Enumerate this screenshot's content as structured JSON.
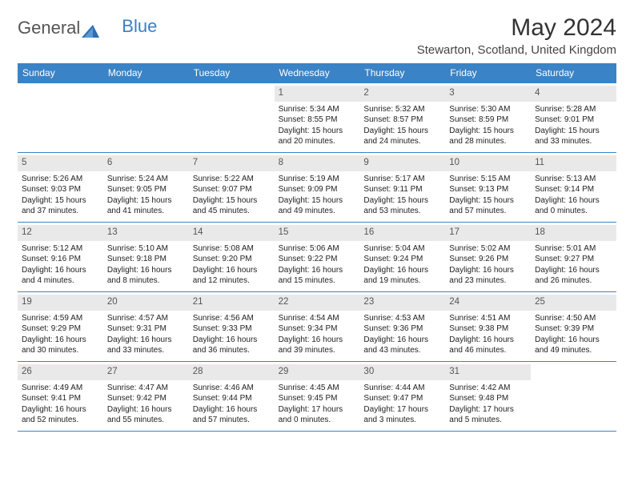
{
  "logo": {
    "textA": "General",
    "textB": "Blue"
  },
  "title": "May 2024",
  "location": "Stewarton, Scotland, United Kingdom",
  "colors": {
    "headerBar": "#3a83c6",
    "dayNumBg": "#e9e9e9",
    "weekBorder": "#3a83c6"
  },
  "weekdays": [
    "Sunday",
    "Monday",
    "Tuesday",
    "Wednesday",
    "Thursday",
    "Friday",
    "Saturday"
  ],
  "weeks": [
    [
      null,
      null,
      null,
      {
        "n": "1",
        "sr": "Sunrise: 5:34 AM",
        "ss": "Sunset: 8:55 PM",
        "d1": "Daylight: 15 hours",
        "d2": "and 20 minutes."
      },
      {
        "n": "2",
        "sr": "Sunrise: 5:32 AM",
        "ss": "Sunset: 8:57 PM",
        "d1": "Daylight: 15 hours",
        "d2": "and 24 minutes."
      },
      {
        "n": "3",
        "sr": "Sunrise: 5:30 AM",
        "ss": "Sunset: 8:59 PM",
        "d1": "Daylight: 15 hours",
        "d2": "and 28 minutes."
      },
      {
        "n": "4",
        "sr": "Sunrise: 5:28 AM",
        "ss": "Sunset: 9:01 PM",
        "d1": "Daylight: 15 hours",
        "d2": "and 33 minutes."
      }
    ],
    [
      {
        "n": "5",
        "sr": "Sunrise: 5:26 AM",
        "ss": "Sunset: 9:03 PM",
        "d1": "Daylight: 15 hours",
        "d2": "and 37 minutes."
      },
      {
        "n": "6",
        "sr": "Sunrise: 5:24 AM",
        "ss": "Sunset: 9:05 PM",
        "d1": "Daylight: 15 hours",
        "d2": "and 41 minutes."
      },
      {
        "n": "7",
        "sr": "Sunrise: 5:22 AM",
        "ss": "Sunset: 9:07 PM",
        "d1": "Daylight: 15 hours",
        "d2": "and 45 minutes."
      },
      {
        "n": "8",
        "sr": "Sunrise: 5:19 AM",
        "ss": "Sunset: 9:09 PM",
        "d1": "Daylight: 15 hours",
        "d2": "and 49 minutes."
      },
      {
        "n": "9",
        "sr": "Sunrise: 5:17 AM",
        "ss": "Sunset: 9:11 PM",
        "d1": "Daylight: 15 hours",
        "d2": "and 53 minutes."
      },
      {
        "n": "10",
        "sr": "Sunrise: 5:15 AM",
        "ss": "Sunset: 9:13 PM",
        "d1": "Daylight: 15 hours",
        "d2": "and 57 minutes."
      },
      {
        "n": "11",
        "sr": "Sunrise: 5:13 AM",
        "ss": "Sunset: 9:14 PM",
        "d1": "Daylight: 16 hours",
        "d2": "and 0 minutes."
      }
    ],
    [
      {
        "n": "12",
        "sr": "Sunrise: 5:12 AM",
        "ss": "Sunset: 9:16 PM",
        "d1": "Daylight: 16 hours",
        "d2": "and 4 minutes."
      },
      {
        "n": "13",
        "sr": "Sunrise: 5:10 AM",
        "ss": "Sunset: 9:18 PM",
        "d1": "Daylight: 16 hours",
        "d2": "and 8 minutes."
      },
      {
        "n": "14",
        "sr": "Sunrise: 5:08 AM",
        "ss": "Sunset: 9:20 PM",
        "d1": "Daylight: 16 hours",
        "d2": "and 12 minutes."
      },
      {
        "n": "15",
        "sr": "Sunrise: 5:06 AM",
        "ss": "Sunset: 9:22 PM",
        "d1": "Daylight: 16 hours",
        "d2": "and 15 minutes."
      },
      {
        "n": "16",
        "sr": "Sunrise: 5:04 AM",
        "ss": "Sunset: 9:24 PM",
        "d1": "Daylight: 16 hours",
        "d2": "and 19 minutes."
      },
      {
        "n": "17",
        "sr": "Sunrise: 5:02 AM",
        "ss": "Sunset: 9:26 PM",
        "d1": "Daylight: 16 hours",
        "d2": "and 23 minutes."
      },
      {
        "n": "18",
        "sr": "Sunrise: 5:01 AM",
        "ss": "Sunset: 9:27 PM",
        "d1": "Daylight: 16 hours",
        "d2": "and 26 minutes."
      }
    ],
    [
      {
        "n": "19",
        "sr": "Sunrise: 4:59 AM",
        "ss": "Sunset: 9:29 PM",
        "d1": "Daylight: 16 hours",
        "d2": "and 30 minutes."
      },
      {
        "n": "20",
        "sr": "Sunrise: 4:57 AM",
        "ss": "Sunset: 9:31 PM",
        "d1": "Daylight: 16 hours",
        "d2": "and 33 minutes."
      },
      {
        "n": "21",
        "sr": "Sunrise: 4:56 AM",
        "ss": "Sunset: 9:33 PM",
        "d1": "Daylight: 16 hours",
        "d2": "and 36 minutes."
      },
      {
        "n": "22",
        "sr": "Sunrise: 4:54 AM",
        "ss": "Sunset: 9:34 PM",
        "d1": "Daylight: 16 hours",
        "d2": "and 39 minutes."
      },
      {
        "n": "23",
        "sr": "Sunrise: 4:53 AM",
        "ss": "Sunset: 9:36 PM",
        "d1": "Daylight: 16 hours",
        "d2": "and 43 minutes."
      },
      {
        "n": "24",
        "sr": "Sunrise: 4:51 AM",
        "ss": "Sunset: 9:38 PM",
        "d1": "Daylight: 16 hours",
        "d2": "and 46 minutes."
      },
      {
        "n": "25",
        "sr": "Sunrise: 4:50 AM",
        "ss": "Sunset: 9:39 PM",
        "d1": "Daylight: 16 hours",
        "d2": "and 49 minutes."
      }
    ],
    [
      {
        "n": "26",
        "sr": "Sunrise: 4:49 AM",
        "ss": "Sunset: 9:41 PM",
        "d1": "Daylight: 16 hours",
        "d2": "and 52 minutes."
      },
      {
        "n": "27",
        "sr": "Sunrise: 4:47 AM",
        "ss": "Sunset: 9:42 PM",
        "d1": "Daylight: 16 hours",
        "d2": "and 55 minutes."
      },
      {
        "n": "28",
        "sr": "Sunrise: 4:46 AM",
        "ss": "Sunset: 9:44 PM",
        "d1": "Daylight: 16 hours",
        "d2": "and 57 minutes."
      },
      {
        "n": "29",
        "sr": "Sunrise: 4:45 AM",
        "ss": "Sunset: 9:45 PM",
        "d1": "Daylight: 17 hours",
        "d2": "and 0 minutes."
      },
      {
        "n": "30",
        "sr": "Sunrise: 4:44 AM",
        "ss": "Sunset: 9:47 PM",
        "d1": "Daylight: 17 hours",
        "d2": "and 3 minutes."
      },
      {
        "n": "31",
        "sr": "Sunrise: 4:42 AM",
        "ss": "Sunset: 9:48 PM",
        "d1": "Daylight: 17 hours",
        "d2": "and 5 minutes."
      },
      null
    ]
  ]
}
